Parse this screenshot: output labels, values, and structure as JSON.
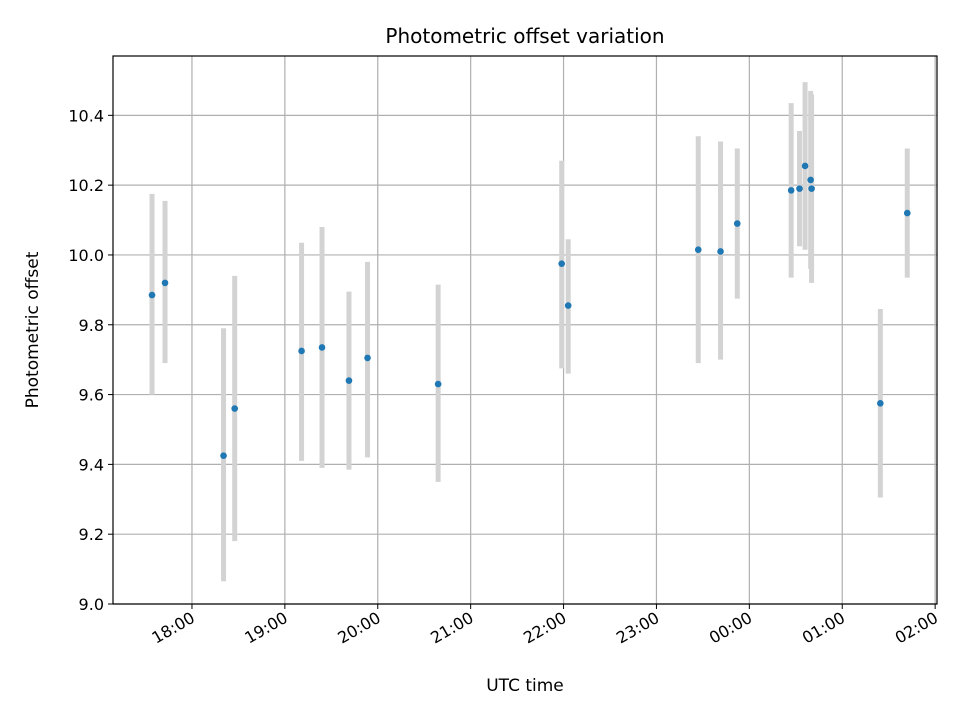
{
  "chart_data": {
    "type": "scatter",
    "title": "Photometric offset variation",
    "xlabel": "UTC time",
    "ylabel": "Photometric offset",
    "x_unit": "hours",
    "xlim": [
      17.15,
      26.02
    ],
    "ylim": [
      9.0,
      10.57
    ],
    "grid": true,
    "x_ticks": [
      {
        "x": 18,
        "label": "18:00"
      },
      {
        "x": 19,
        "label": "19:00"
      },
      {
        "x": 20,
        "label": "20:00"
      },
      {
        "x": 21,
        "label": "21:00"
      },
      {
        "x": 22,
        "label": "22:00"
      },
      {
        "x": 23,
        "label": "23:00"
      },
      {
        "x": 24,
        "label": "00:00"
      },
      {
        "x": 25,
        "label": "01:00"
      },
      {
        "x": 26,
        "label": "02:00"
      }
    ],
    "y_ticks": [
      9.0,
      9.2,
      9.4,
      9.6,
      9.8,
      10.0,
      10.2,
      10.4
    ],
    "colors": {
      "point": "#1f77b4",
      "errorbar": "#d3d3d3",
      "grid": "#b0b0b0"
    },
    "points": [
      {
        "x": 17.57,
        "y": 9.885,
        "lo": 9.6,
        "hi": 10.175
      },
      {
        "x": 17.71,
        "y": 9.92,
        "lo": 9.69,
        "hi": 10.155
      },
      {
        "x": 18.34,
        "y": 9.425,
        "lo": 9.065,
        "hi": 9.79
      },
      {
        "x": 18.46,
        "y": 9.56,
        "lo": 9.18,
        "hi": 9.94
      },
      {
        "x": 19.18,
        "y": 9.725,
        "lo": 9.41,
        "hi": 10.035
      },
      {
        "x": 19.4,
        "y": 9.735,
        "lo": 9.39,
        "hi": 10.08
      },
      {
        "x": 19.69,
        "y": 9.64,
        "lo": 9.385,
        "hi": 9.895
      },
      {
        "x": 19.89,
        "y": 9.705,
        "lo": 9.42,
        "hi": 9.98
      },
      {
        "x": 20.65,
        "y": 9.63,
        "lo": 9.35,
        "hi": 9.915
      },
      {
        "x": 21.98,
        "y": 9.975,
        "lo": 9.675,
        "hi": 10.27
      },
      {
        "x": 22.05,
        "y": 9.855,
        "lo": 9.66,
        "hi": 10.045
      },
      {
        "x": 23.45,
        "y": 10.015,
        "lo": 9.69,
        "hi": 10.34
      },
      {
        "x": 23.69,
        "y": 10.01,
        "lo": 9.7,
        "hi": 10.325
      },
      {
        "x": 23.87,
        "y": 10.09,
        "lo": 9.875,
        "hi": 10.305
      },
      {
        "x": 24.45,
        "y": 10.185,
        "lo": 9.935,
        "hi": 10.435
      },
      {
        "x": 24.54,
        "y": 10.19,
        "lo": 10.025,
        "hi": 10.355
      },
      {
        "x": 24.6,
        "y": 10.255,
        "lo": 10.015,
        "hi": 10.495
      },
      {
        "x": 24.66,
        "y": 10.215,
        "lo": 9.96,
        "hi": 10.47
      },
      {
        "x": 24.67,
        "y": 10.19,
        "lo": 9.92,
        "hi": 10.46
      },
      {
        "x": 25.41,
        "y": 9.575,
        "lo": 9.305,
        "hi": 9.845
      },
      {
        "x": 25.7,
        "y": 10.12,
        "lo": 9.935,
        "hi": 10.305
      }
    ]
  }
}
